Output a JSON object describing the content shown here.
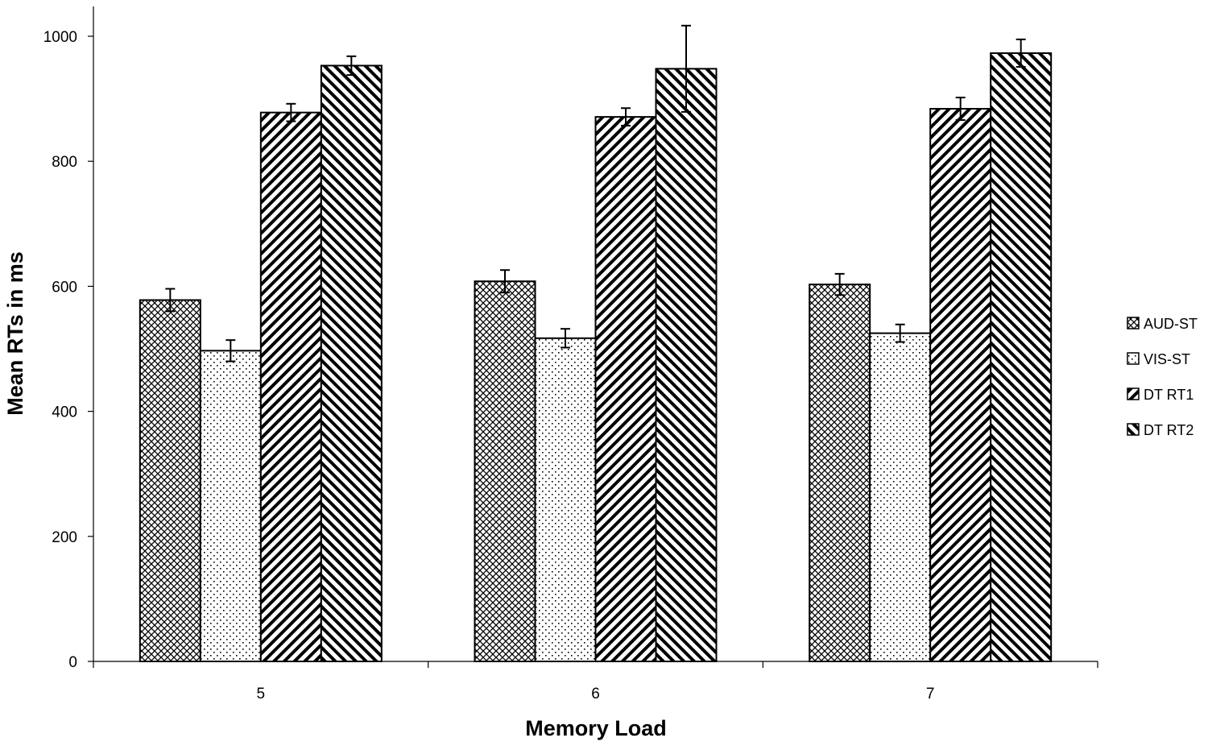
{
  "chart_data": {
    "type": "bar",
    "title": "",
    "xlabel": "Memory Load",
    "ylabel": "Mean RTs in ms",
    "categories": [
      "5",
      "6",
      "7"
    ],
    "ylim": [
      0,
      1000
    ],
    "yticks": [
      0,
      200,
      400,
      600,
      800,
      1000
    ],
    "grid": false,
    "legend_position": "right",
    "series": [
      {
        "name": "AUD-ST",
        "pattern": "crosshatch",
        "values": [
          578,
          608,
          603
        ],
        "errors": [
          18,
          18,
          17
        ]
      },
      {
        "name": "VIS-ST",
        "pattern": "dots",
        "values": [
          497,
          517,
          525
        ],
        "errors": [
          17,
          15,
          14
        ]
      },
      {
        "name": "DT RT1",
        "pattern": "diagonal-up",
        "values": [
          878,
          871,
          884
        ],
        "errors": [
          14,
          14,
          18
        ]
      },
      {
        "name": "DT RT2",
        "pattern": "diagonal-down",
        "values": [
          953,
          948,
          973
        ],
        "errors": [
          15,
          69,
          22
        ]
      }
    ]
  }
}
